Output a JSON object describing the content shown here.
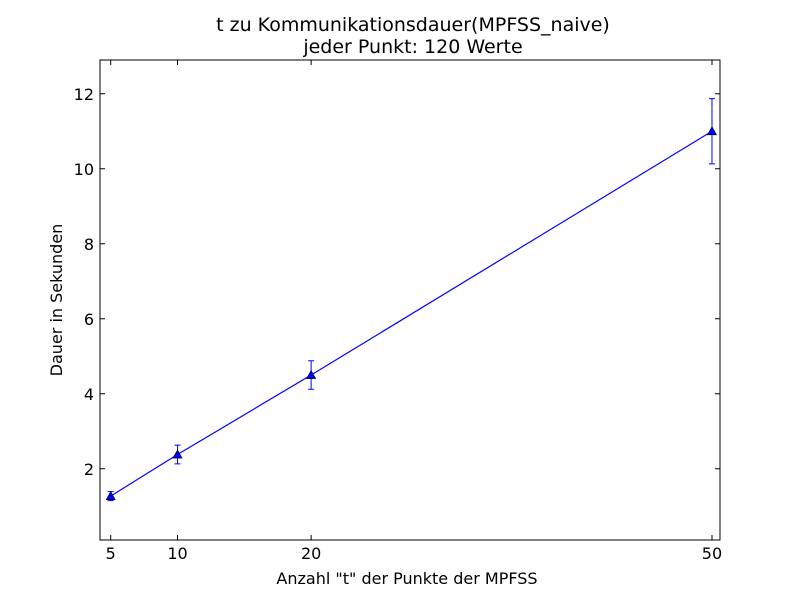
{
  "chart_data": {
    "type": "line",
    "title": "t zu Kommunikationsdauer(MPFSS_naive)",
    "subtitle": "jeder Punkt: 120 Werte",
    "xlabel": "Anzahl \"t\" der Punkte der MPFSS",
    "ylabel": "Dauer in Sekunden",
    "xlim": [
      4.2,
      50.6
    ],
    "ylim": [
      0.1,
      12.9
    ],
    "xticks": [
      5,
      10,
      20,
      50
    ],
    "yticks": [
      2,
      4,
      6,
      8,
      10,
      12
    ],
    "grid": false,
    "series": [
      {
        "x": [
          5,
          10,
          20,
          50
        ],
        "y": [
          1.27,
          2.38,
          4.5,
          11.0
        ],
        "yerr": [
          0.12,
          0.25,
          0.38,
          0.87
        ],
        "marker": "triangle-up",
        "color": "#0000ff"
      }
    ]
  }
}
